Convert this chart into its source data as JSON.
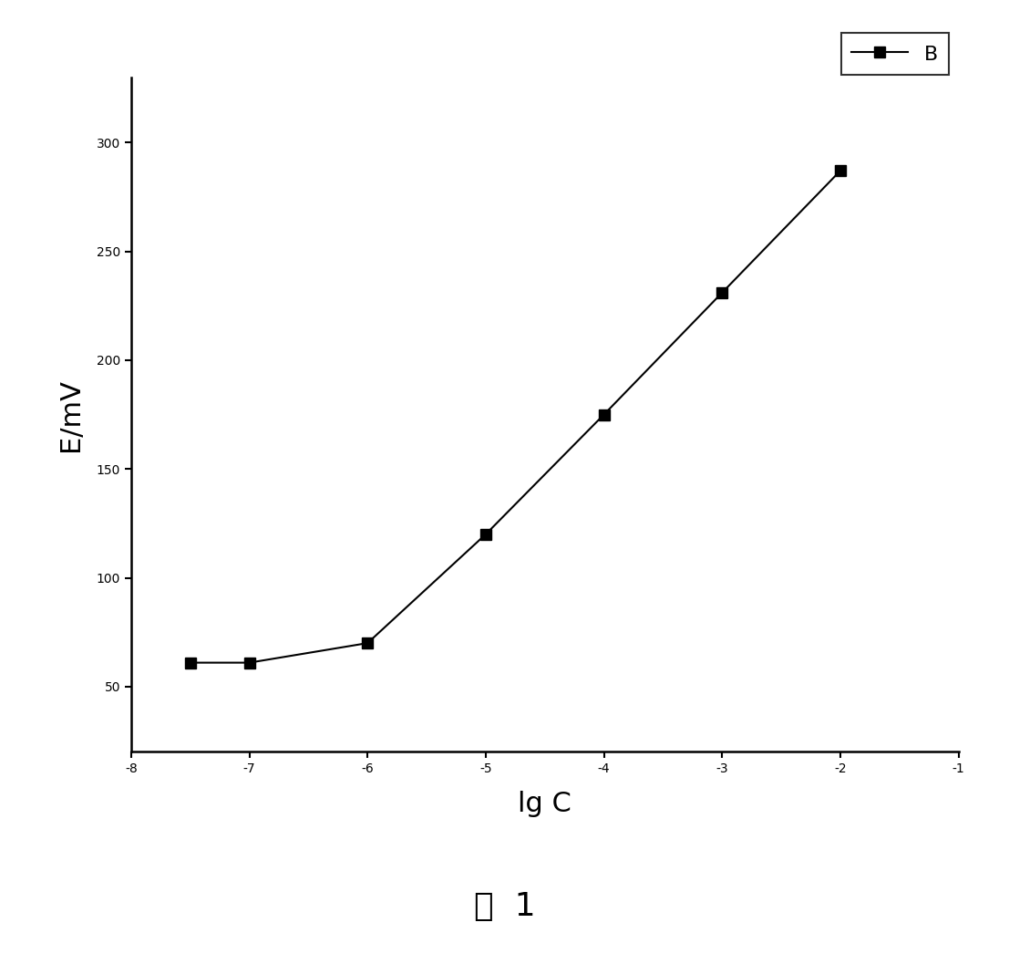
{
  "x": [
    -7.5,
    -7,
    -6,
    -5,
    -4,
    -3,
    -2
  ],
  "y": [
    61,
    61,
    70,
    120,
    175,
    231,
    287
  ],
  "line_color": "#000000",
  "marker_color": "#000000",
  "marker_style": "s",
  "marker_size": 9,
  "line_width": 1.5,
  "xlabel": "lg C",
  "ylabel": "E/mV",
  "xlim": [
    -8,
    -1
  ],
  "ylim": [
    20,
    330
  ],
  "xticks": [
    -8,
    -7,
    -6,
    -5,
    -4,
    -3,
    -2,
    -1
  ],
  "xtick_labels": [
    "-8",
    "-7",
    "-6",
    "-5",
    "-4",
    "-3",
    "-2",
    "-1"
  ],
  "yticks": [
    50,
    100,
    150,
    200,
    250,
    300
  ],
  "ytick_labels": [
    "50",
    "100",
    "150",
    "200",
    "250",
    "300"
  ],
  "legend_label": "B",
  "figure_caption": "图  1",
  "background_color": "#ffffff",
  "axis_label_fontsize": 22,
  "tick_fontsize": 17,
  "legend_fontsize": 16,
  "caption_fontsize": 26
}
